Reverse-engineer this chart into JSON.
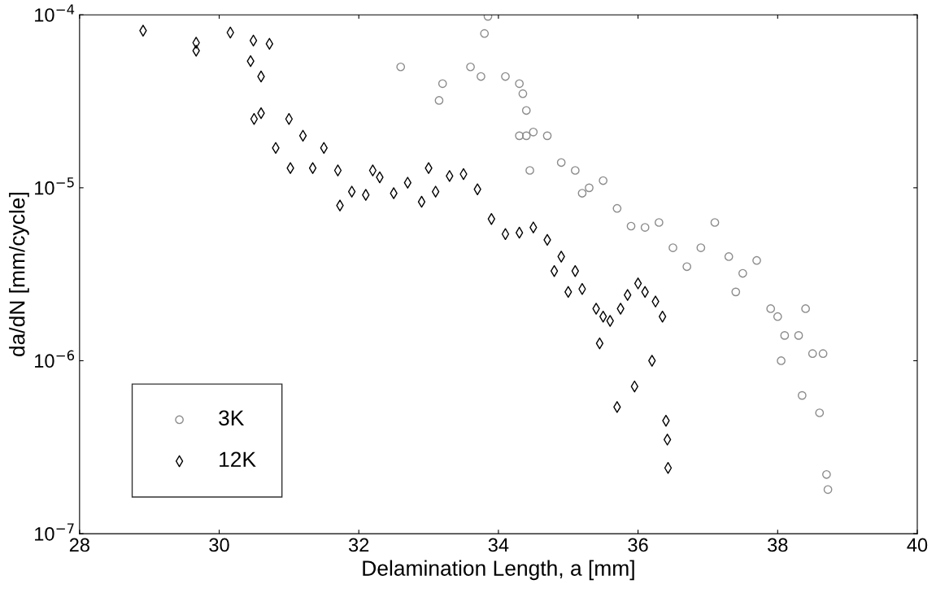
{
  "chart_data": {
    "type": "scatter",
    "xlabel": "Delamination Length, a [mm]",
    "ylabel": "da/dN [mm/cycle]",
    "log": "y",
    "xlim": [
      28,
      40
    ],
    "xticks": [
      28,
      30,
      32,
      34,
      36,
      38,
      40
    ],
    "ylim": [
      1e-07,
      0.0001
    ],
    "yticks": [
      {
        "value": 1e-07,
        "label": "10$^{−7}$"
      },
      {
        "value": 1e-06,
        "label": "10$^{−6}$"
      },
      {
        "value": 1e-05,
        "label": "10$^{−5}$"
      },
      {
        "value": 0.0001,
        "label": "10$^{−4}$"
      }
    ],
    "grid": false,
    "legend": "bottom left",
    "series": [
      {
        "name": "3K",
        "color": "#8c8c8c",
        "marker": "circle",
        "x": [
          32.6,
          33.15,
          33.2,
          33.6,
          33.75,
          33.8,
          33.85,
          34.1,
          34.3,
          34.35,
          34.3,
          34.4,
          34.4,
          34.45,
          34.5,
          34.7,
          34.9,
          35.1,
          35.2,
          35.3,
          35.5,
          35.7,
          35.9,
          36.1,
          36.3,
          36.5,
          36.7,
          36.9,
          37.1,
          37.3,
          37.4,
          37.5,
          37.7,
          37.9,
          38.0,
          38.05,
          38.1,
          38.3,
          38.35,
          38.4,
          38.5,
          38.6,
          38.65,
          38.7,
          38.72
        ],
        "values": [
          5e-05,
          3.2e-05,
          4e-05,
          5e-05,
          4.4e-05,
          7.8e-05,
          9.8e-05,
          4.4e-05,
          4e-05,
          3.5e-05,
          2e-05,
          2.8e-05,
          2e-05,
          1.26e-05,
          2.1e-05,
          2e-05,
          1.4e-05,
          1.26e-05,
          9.3e-06,
          1e-05,
          1.1e-05,
          7.6e-06,
          6e-06,
          5.9e-06,
          6.3e-06,
          4.5e-06,
          3.5e-06,
          4.5e-06,
          6.3e-06,
          4e-06,
          2.5e-06,
          3.2e-06,
          3.8e-06,
          2e-06,
          1.8e-06,
          1e-06,
          1.4e-06,
          1.4e-06,
          6.3e-07,
          2e-06,
          1.1e-06,
          5e-07,
          1.1e-06,
          2.2e-07,
          1.8e-07
        ]
      },
      {
        "name": "12K",
        "color": "#000000",
        "marker": "diamond",
        "x": [
          28.91,
          29.67,
          29.67,
          30.16,
          30.49,
          30.45,
          30.5,
          30.6,
          30.72,
          30.6,
          30.81,
          31.0,
          31.02,
          31.2,
          31.34,
          31.5,
          31.7,
          31.73,
          31.9,
          32.1,
          32.2,
          32.3,
          32.5,
          32.7,
          32.9,
          33.0,
          33.1,
          33.3,
          33.5,
          33.7,
          33.9,
          34.1,
          34.3,
          34.5,
          34.7,
          34.8,
          34.9,
          35.0,
          35.1,
          35.2,
          35.4,
          35.45,
          35.5,
          35.6,
          35.7,
          35.75,
          35.85,
          35.95,
          36.0,
          36.1,
          36.2,
          36.25,
          36.35,
          36.4,
          36.42,
          36.43
        ],
        "values": [
          8.1e-05,
          6.9e-05,
          6.2e-05,
          7.9e-05,
          7.1e-05,
          5.4e-05,
          2.5e-05,
          2.7e-05,
          6.8e-05,
          4.4e-05,
          1.7e-05,
          2.5e-05,
          1.3e-05,
          2e-05,
          1.3e-05,
          1.7e-05,
          1.26e-05,
          7.9e-06,
          9.5e-06,
          9.1e-06,
          1.26e-05,
          1.15e-05,
          9.3e-06,
          1.07e-05,
          8.3e-06,
          1.3e-05,
          9.5e-06,
          1.17e-05,
          1.2e-05,
          9.8e-06,
          6.6e-06,
          5.4e-06,
          5.5e-06,
          5.9e-06,
          5e-06,
          3.3e-06,
          4e-06,
          2.5e-06,
          3.3e-06,
          2.6e-06,
          2e-06,
          1.26e-06,
          1.8e-06,
          1.7e-06,
          5.4e-07,
          2e-06,
          2.4e-06,
          7.1e-07,
          2.8e-06,
          2.5e-06,
          1e-06,
          2.2e-06,
          1.8e-06,
          4.5e-07,
          3.5e-07,
          2.4e-07
        ]
      }
    ]
  }
}
